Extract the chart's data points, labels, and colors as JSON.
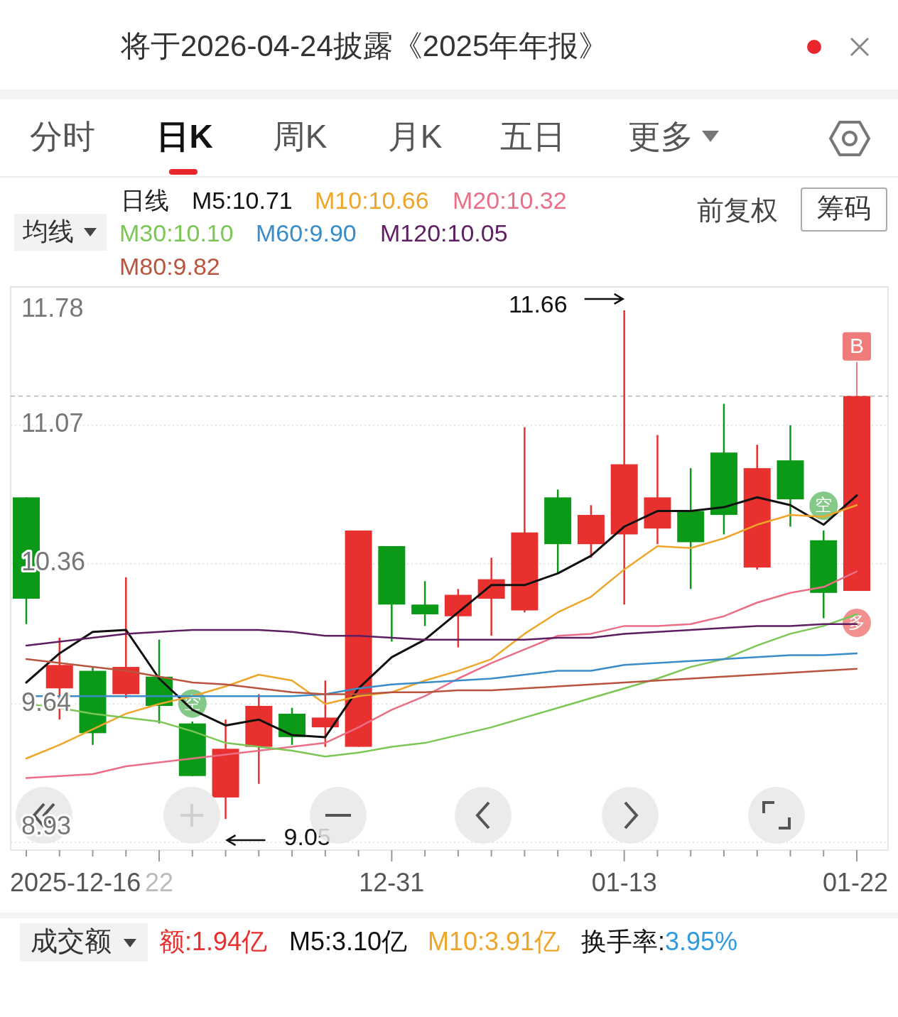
{
  "chart_data": {
    "type": "candlestick",
    "title": "将于2026-04-24披露《2025年年报》",
    "legend_title": "日线",
    "categories": [
      null,
      null,
      null,
      null,
      "22",
      null,
      null,
      null,
      null,
      null,
      null,
      "12-31",
      null,
      null,
      null,
      null,
      null,
      null,
      "01-13",
      null,
      null,
      null,
      null,
      null,
      null,
      "01-22"
    ],
    "ohlc": [
      [
        10.7,
        10.7,
        10.05,
        10.18
      ],
      [
        9.72,
        9.98,
        9.56,
        9.84
      ],
      [
        9.81,
        9.83,
        9.43,
        9.49
      ],
      [
        9.69,
        10.29,
        9.67,
        9.83
      ],
      [
        9.78,
        9.97,
        9.54,
        9.63
      ],
      [
        9.54,
        9.55,
        9.27,
        9.27
      ],
      [
        9.16,
        9.56,
        9.05,
        9.41
      ],
      [
        9.42,
        9.69,
        9.23,
        9.63
      ],
      [
        9.59,
        9.62,
        9.43,
        9.47
      ],
      [
        9.52,
        9.76,
        9.42,
        9.57
      ],
      [
        9.42,
        10.53,
        9.42,
        10.53
      ],
      [
        10.45,
        10.45,
        9.96,
        10.15
      ],
      [
        10.15,
        10.27,
        10.04,
        10.1
      ],
      [
        10.09,
        10.23,
        9.93,
        10.2
      ],
      [
        10.18,
        10.39,
        9.99,
        10.28
      ],
      [
        10.12,
        11.06,
        10.11,
        10.52
      ],
      [
        10.7,
        10.74,
        10.31,
        10.46
      ],
      [
        10.46,
        10.66,
        10.39,
        10.61
      ],
      [
        10.51,
        11.66,
        10.15,
        10.87
      ],
      [
        10.54,
        11.02,
        10.46,
        10.7
      ],
      [
        10.63,
        10.85,
        10.23,
        10.47
      ],
      [
        10.93,
        11.18,
        10.51,
        10.61
      ],
      [
        10.34,
        10.97,
        10.33,
        10.85
      ],
      [
        10.89,
        11.07,
        10.55,
        10.69
      ],
      [
        10.48,
        10.53,
        10.08,
        10.21
      ],
      [
        10.22,
        11.22,
        10.22,
        11.22
      ]
    ],
    "series": [
      {
        "name": "M5:10.71",
        "color": "#111111",
        "type": "line",
        "values": [
          9.75,
          9.9,
          10.01,
          10.02,
          9.77,
          9.61,
          9.53,
          9.56,
          9.48,
          9.47,
          9.72,
          9.88,
          9.97,
          10.11,
          10.25,
          10.25,
          10.31,
          10.4,
          10.55,
          10.63,
          10.63,
          10.65,
          10.7,
          10.66,
          10.56,
          10.71
        ]
      },
      {
        "name": "M10:10.66",
        "color": "#eea62a",
        "type": "line",
        "values": [
          9.36,
          9.43,
          9.51,
          9.59,
          9.64,
          9.68,
          9.73,
          9.79,
          9.76,
          9.64,
          9.68,
          9.7,
          9.76,
          9.81,
          9.87,
          10.0,
          10.11,
          10.19,
          10.33,
          10.45,
          10.44,
          10.49,
          10.56,
          10.61,
          10.6,
          10.66
        ]
      },
      {
        "name": "M20:10.32",
        "color": "#ea6f86",
        "type": "line",
        "values": [
          9.26,
          9.27,
          9.28,
          9.32,
          9.34,
          9.36,
          9.38,
          9.4,
          9.42,
          9.44,
          9.52,
          9.61,
          9.68,
          9.77,
          9.85,
          9.92,
          9.99,
          10.0,
          10.04,
          10.04,
          10.05,
          10.09,
          10.16,
          10.21,
          10.24,
          10.32
        ]
      },
      {
        "name": "M30:10.10",
        "color": "#7cc655",
        "type": "line",
        "values": [
          9.64,
          9.62,
          9.59,
          9.57,
          9.55,
          9.5,
          9.44,
          9.42,
          9.4,
          9.37,
          9.39,
          9.42,
          9.44,
          9.48,
          9.52,
          9.57,
          9.62,
          9.67,
          9.72,
          9.77,
          9.83,
          9.87,
          9.94,
          10.0,
          10.04,
          10.1
        ]
      },
      {
        "name": "M60:9.90",
        "color": "#3a8cc8",
        "type": "line",
        "values": [
          9.68,
          9.68,
          9.68,
          9.68,
          9.68,
          9.68,
          9.68,
          9.68,
          9.68,
          9.69,
          9.72,
          9.74,
          9.75,
          9.76,
          9.77,
          9.79,
          9.81,
          9.81,
          9.84,
          9.85,
          9.86,
          9.87,
          9.88,
          9.89,
          9.89,
          9.9
        ]
      },
      {
        "name": "M120:10.05",
        "color": "#5e1e62",
        "type": "line",
        "values": [
          9.94,
          9.96,
          9.98,
          10.0,
          10.01,
          10.02,
          10.02,
          10.02,
          10.01,
          9.99,
          9.99,
          9.98,
          9.97,
          9.97,
          9.97,
          9.97,
          9.98,
          9.98,
          10.0,
          10.01,
          10.02,
          10.03,
          10.04,
          10.04,
          10.05,
          10.05
        ]
      },
      {
        "name": "M80:9.82",
        "color": "#b9543e",
        "type": "line",
        "values": [
          9.87,
          9.85,
          9.83,
          9.81,
          9.78,
          9.75,
          9.74,
          9.72,
          9.7,
          9.69,
          9.69,
          9.7,
          9.7,
          9.71,
          9.71,
          9.72,
          9.73,
          9.74,
          9.75,
          9.76,
          9.77,
          9.78,
          9.79,
          9.8,
          9.81,
          9.82
        ]
      }
    ],
    "ylim": [
      8.89,
      11.78
    ],
    "yticks": [
      11.78,
      11.07,
      10.36,
      9.64,
      8.93
    ],
    "grid": "y",
    "legend": "top left",
    "ref_lines": [
      {
        "axis": "y",
        "value": 11.22,
        "color": "#b8b8b8",
        "line_style": "dashed"
      }
    ],
    "annotations": [
      {
        "text": "11.66",
        "x": "01-13",
        "y": 11.66
      },
      "9.05",
      "分时",
      "日K",
      "周K",
      "月K",
      "五日",
      "更多",
      "均线",
      "前复权",
      "筹码",
      "空",
      "空",
      "多",
      {
        "text": "B",
        "x": "01-22",
        "y": 11.22
      },
      "成交额",
      "额:1.94亿",
      "M5:3.10亿",
      "M10:3.91亿",
      "换手率:3.95%",
      "2025-12-16"
    ]
  }
}
